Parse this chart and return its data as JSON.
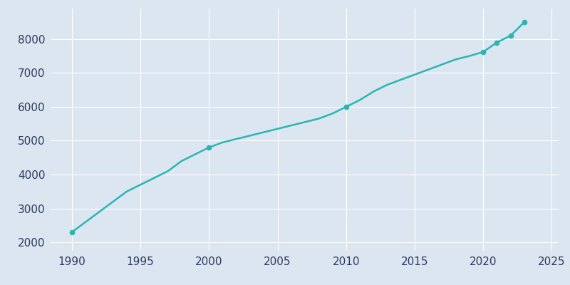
{
  "years": [
    1990,
    1991,
    1992,
    1993,
    1994,
    1995,
    1996,
    1997,
    1998,
    1999,
    2000,
    2001,
    2002,
    2003,
    2004,
    2005,
    2006,
    2007,
    2008,
    2009,
    2010,
    2011,
    2012,
    2013,
    2014,
    2015,
    2016,
    2017,
    2018,
    2019,
    2020,
    2021,
    2022,
    2023
  ],
  "population": [
    2300,
    2600,
    2900,
    3200,
    3500,
    3700,
    3900,
    4100,
    4400,
    4600,
    4800,
    4950,
    5050,
    5150,
    5250,
    5350,
    5450,
    5550,
    5650,
    5800,
    6000,
    6200,
    6450,
    6650,
    6800,
    6950,
    7100,
    7250,
    7400,
    7500,
    7620,
    7900,
    8100,
    8500
  ],
  "line_color": "#2ab5b5",
  "marker_years": [
    1990,
    2000,
    2010,
    2020,
    2021,
    2022,
    2023
  ],
  "marker_values": [
    2300,
    4800,
    6000,
    7620,
    7900,
    8100,
    8500
  ],
  "bg_color": "#dce6f0",
  "ax_bg_color": "#dce6f0",
  "fig_bg_color": "#dce6f0",
  "grid_color": "#ffffff",
  "tick_label_color": "#2d3a5e",
  "xlim": [
    1988.5,
    2025.5
  ],
  "ylim": [
    1750,
    8900
  ],
  "xticks": [
    1990,
    1995,
    2000,
    2005,
    2010,
    2015,
    2020,
    2025
  ],
  "yticks": [
    2000,
    3000,
    4000,
    5000,
    6000,
    7000,
    8000
  ],
  "line_width": 1.8,
  "marker_size": 4.5
}
